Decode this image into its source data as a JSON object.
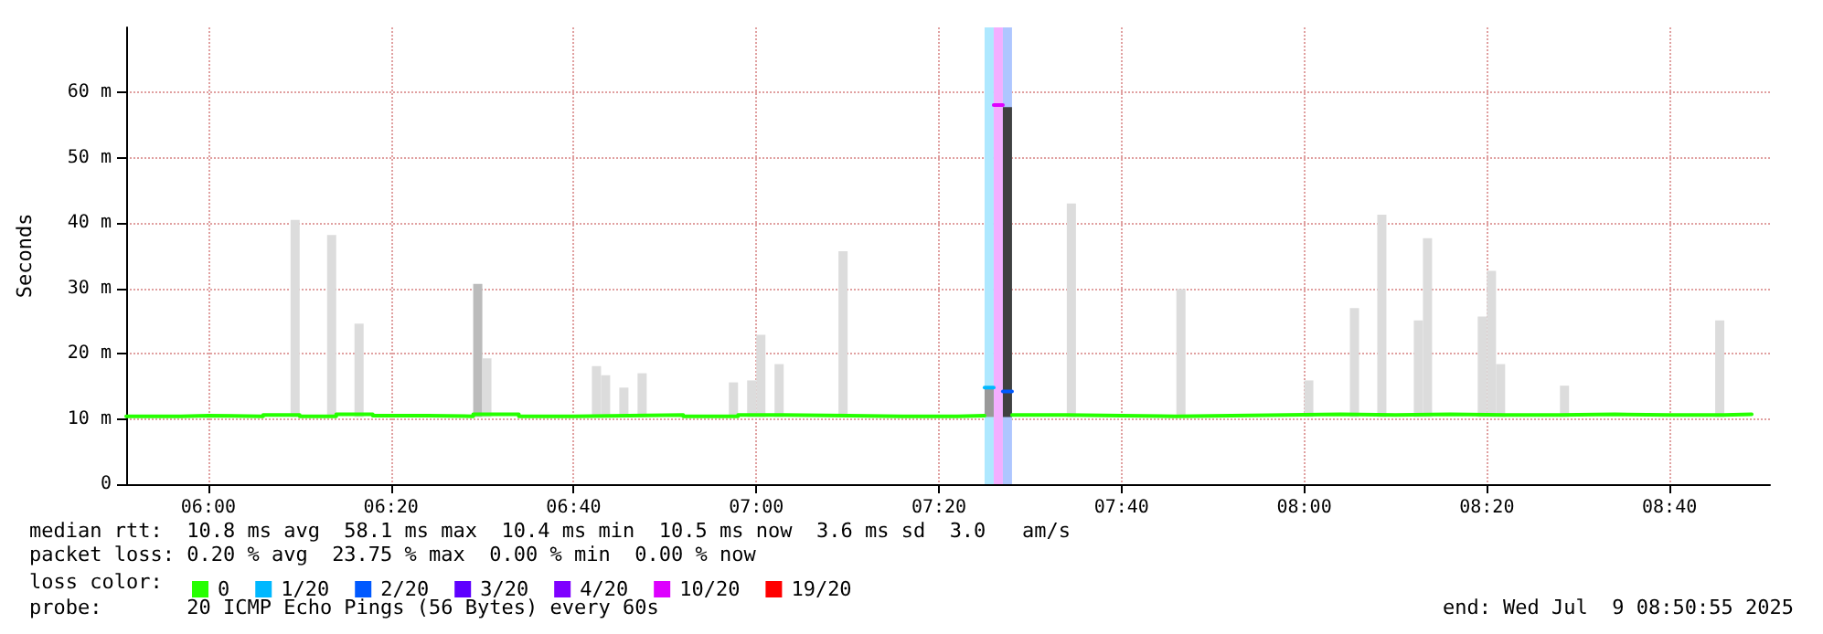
{
  "chart_data": {
    "type": "step",
    "ylabel": "Seconds",
    "legend_title": "loss color:",
    "legend": "bottom left",
    "grid": true,
    "marker": "none",
    "line_style": "solid",
    "xlim": [
      "2025-07-09T05:51",
      "2025-07-09T08:51"
    ],
    "xticks": [
      {
        "value": "2025-07-09T06:00",
        "label": "06:00"
      },
      {
        "value": "2025-07-09T06:20",
        "label": "06:20"
      },
      {
        "value": "2025-07-09T06:40",
        "label": "06:40"
      },
      {
        "value": "2025-07-09T07:00",
        "label": "07:00"
      },
      {
        "value": "2025-07-09T07:20",
        "label": "07:20"
      },
      {
        "value": "2025-07-09T07:40",
        "label": "07:40"
      },
      {
        "value": "2025-07-09T08:00",
        "label": "08:00"
      },
      {
        "value": "2025-07-09T08:20",
        "label": "08:20"
      },
      {
        "value": "2025-07-09T08:40",
        "label": "08:40"
      }
    ],
    "ylim": [
      0,
      70
    ],
    "yticks": [
      {
        "value": 0,
        "label": "0"
      },
      {
        "value": 10,
        "label": "10 m"
      },
      {
        "value": 20,
        "label": "20 m"
      },
      {
        "value": 30,
        "label": "30 m"
      },
      {
        "value": 40,
        "label": "40 m"
      },
      {
        "value": 50,
        "label": "50 m"
      },
      {
        "value": 60,
        "label": "60 m"
      }
    ],
    "bands": [
      {
        "axis": "x",
        "from": "2025-07-09T07:25",
        "to": "2025-07-09T07:26",
        "color": "#aee8ff"
      },
      {
        "axis": "x",
        "from": "2025-07-09T07:26",
        "to": "2025-07-09T07:27",
        "color": "#f3aeff"
      },
      {
        "axis": "x",
        "from": "2025-07-09T07:27",
        "to": "2025-07-09T07:28",
        "color": "#aec6ff"
      }
    ],
    "series": [
      {
        "type": "bar",
        "x": [
          "2025-07-09T06:09",
          "2025-07-09T06:13",
          "2025-07-09T06:16",
          "2025-07-09T06:29",
          "2025-07-09T06:30",
          "2025-07-09T06:42",
          "2025-07-09T06:43",
          "2025-07-09T06:45",
          "2025-07-09T06:47",
          "2025-07-09T06:57",
          "2025-07-09T06:59",
          "2025-07-09T07:00",
          "2025-07-09T07:02",
          "2025-07-09T07:09",
          "2025-07-09T07:25",
          "2025-07-09T07:27",
          "2025-07-09T07:34",
          "2025-07-09T07:46",
          "2025-07-09T08:00",
          "2025-07-09T08:05",
          "2025-07-09T08:08",
          "2025-07-09T08:12",
          "2025-07-09T08:13",
          "2025-07-09T08:19",
          "2025-07-09T08:20",
          "2025-07-09T08:21",
          "2025-07-09T08:28",
          "2025-07-09T08:45"
        ],
        "base": [
          10.3,
          10.3,
          10.3,
          10.3,
          10.3,
          10.3,
          10.3,
          10.3,
          10.3,
          10.3,
          10.3,
          10.3,
          10.3,
          10.3,
          10.3,
          10.3,
          10.3,
          10.3,
          10.3,
          10.3,
          10.3,
          10.3,
          10.3,
          10.3,
          10.3,
          10.3,
          10.3,
          10.3
        ],
        "values": [
          30.2,
          27.9,
          14.3,
          20.4,
          9.0,
          7.8,
          6.4,
          4.5,
          6.7,
          5.3,
          5.6,
          12.6,
          8.1,
          25.4,
          4.5,
          47.5,
          32.7,
          19.6,
          5.6,
          16.7,
          31.0,
          14.8,
          27.4,
          15.4,
          22.4,
          8.1,
          4.8,
          14.8
        ],
        "colors": [
          "#dcdcdc",
          "#dcdcdc",
          "#dcdcdc",
          "#bbbbbb",
          "#dcdcdc",
          "#dcdcdc",
          "#dcdcdc",
          "#dcdcdc",
          "#dcdcdc",
          "#dcdcdc",
          "#dcdcdc",
          "#dcdcdc",
          "#dcdcdc",
          "#dcdcdc",
          "#999999",
          "#404040",
          "#dcdcdc",
          "#dcdcdc",
          "#dcdcdc",
          "#dcdcdc",
          "#dcdcdc",
          "#dcdcdc",
          "#dcdcdc",
          "#dcdcdc",
          "#dcdcdc",
          "#dcdcdc",
          "#dcdcdc",
          "#dcdcdc"
        ]
      },
      {
        "name": "0",
        "color": "#26ff00",
        "x": [
          "2025-07-09T05:51",
          "2025-07-09T05:57",
          "2025-07-09T06:00",
          "2025-07-09T06:06",
          "2025-07-09T06:10",
          "2025-07-09T06:14",
          "2025-07-09T06:18",
          "2025-07-09T06:24",
          "2025-07-09T06:29",
          "2025-07-09T06:34",
          "2025-07-09T06:40",
          "2025-07-09T06:46",
          "2025-07-09T06:52",
          "2025-07-09T06:58",
          "2025-07-09T07:03",
          "2025-07-09T07:10",
          "2025-07-09T07:16",
          "2025-07-09T07:22",
          "2025-07-09T07:25",
          "2025-07-09T07:28",
          "2025-07-09T07:34",
          "2025-07-09T07:40",
          "2025-07-09T07:46",
          "2025-07-09T07:52",
          "2025-07-09T07:58",
          "2025-07-09T08:04",
          "2025-07-09T08:10",
          "2025-07-09T08:16",
          "2025-07-09T08:22",
          "2025-07-09T08:28",
          "2025-07-09T08:34",
          "2025-07-09T08:40",
          "2025-07-09T08:46",
          "2025-07-09T08:49"
        ],
        "values": [
          10.4,
          10.5,
          10.4,
          10.6,
          10.4,
          10.7,
          10.5,
          10.4,
          10.7,
          10.4,
          10.5,
          10.6,
          10.4,
          10.6,
          10.5,
          10.4,
          10.4,
          10.5,
          null,
          10.6,
          10.5,
          10.4,
          10.5,
          10.6,
          10.7,
          10.6,
          10.7,
          10.6,
          10.6,
          10.7,
          10.6,
          10.6,
          10.7,
          10.6
        ]
      },
      {
        "name": "1/20",
        "color": "#00b8ff",
        "x": [
          "2025-07-09T07:25",
          "2025-07-09T07:26"
        ],
        "values": [
          14.8,
          14.8
        ]
      },
      {
        "name": "2/20",
        "color": "#0059ff",
        "x": [
          "2025-07-09T07:27",
          "2025-07-09T07:28"
        ],
        "values": [
          14.2,
          14.2
        ]
      },
      {
        "name": "3/20",
        "color": "#5e00ff"
      },
      {
        "name": "4/20",
        "color": "#7e00ff"
      },
      {
        "name": "10/20",
        "color": "#dd00ff",
        "x": [
          "2025-07-09T07:26",
          "2025-07-09T07:27"
        ],
        "values": [
          58.1,
          58.1
        ]
      },
      {
        "name": "19/20",
        "color": "#ff0000"
      }
    ],
    "annotations": [
      "median rtt:  10.8 ms avg  58.1 ms max  10.4 ms min  10.5 ms now  3.6 ms sd  3.0   am/s",
      "packet loss: 0.20 % avg  23.75 % max  0.00 % min  0.00 % now",
      "probe:       20 ICMP Echo Pings (56 Bytes) every 60s",
      "end: Wed Jul  9 08:50:55 2025"
    ]
  }
}
